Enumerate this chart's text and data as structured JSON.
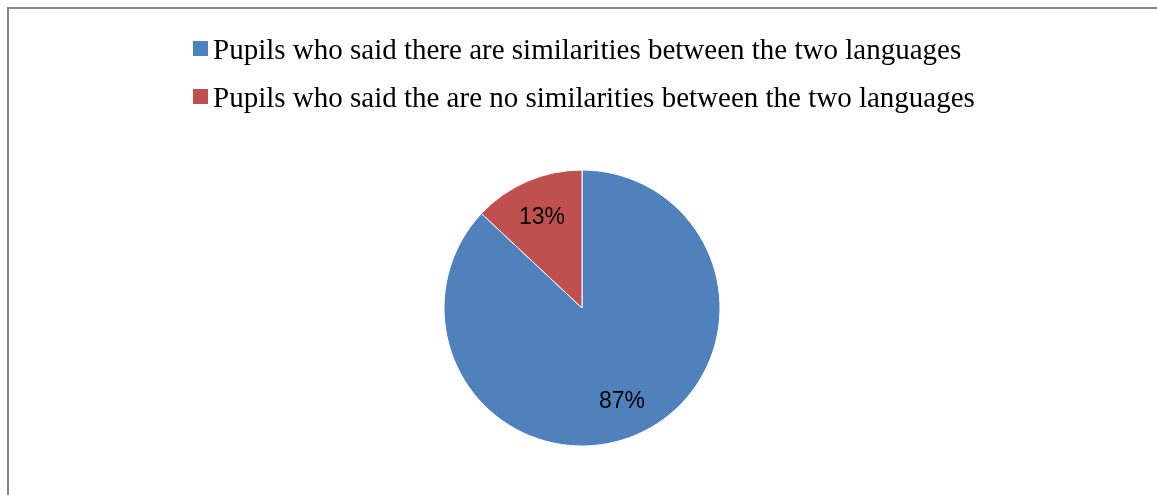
{
  "chart_data": {
    "type": "pie",
    "categories": [
      "Pupils who said there are similarities between the two languages",
      "Pupils who said the are no similarities between the two languages"
    ],
    "values": [
      87,
      13
    ],
    "colors": [
      "#4f81bd",
      "#c0504d"
    ],
    "value_labels": [
      "87%",
      "13%"
    ],
    "legend": "top"
  }
}
